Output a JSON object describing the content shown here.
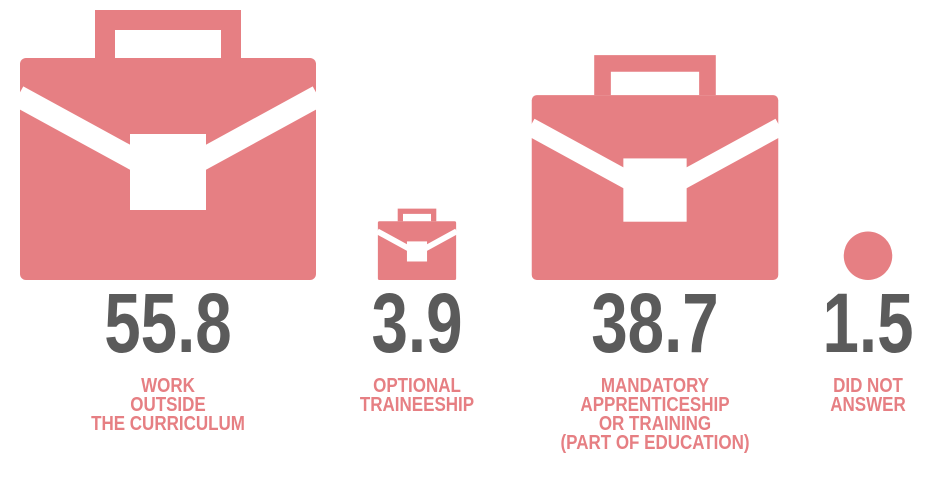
{
  "chart_data": {
    "type": "pictogram",
    "categories": [
      [
        "WORK",
        "OUTSIDE",
        "THE CURRICULUM"
      ],
      [
        "OPTIONAL",
        "TRAINEESHIP"
      ],
      [
        "MANDATORY",
        "APPRENTICESHIP",
        "OR TRAINING",
        "(PART OF EDUCATION)"
      ],
      [
        "DID NOT",
        "ANSWER"
      ]
    ],
    "values": [
      55.8,
      3.9,
      38.7,
      1.5
    ],
    "icons": [
      "briefcase",
      "briefcase",
      "briefcase",
      "circle"
    ],
    "color": "#e67f83"
  }
}
